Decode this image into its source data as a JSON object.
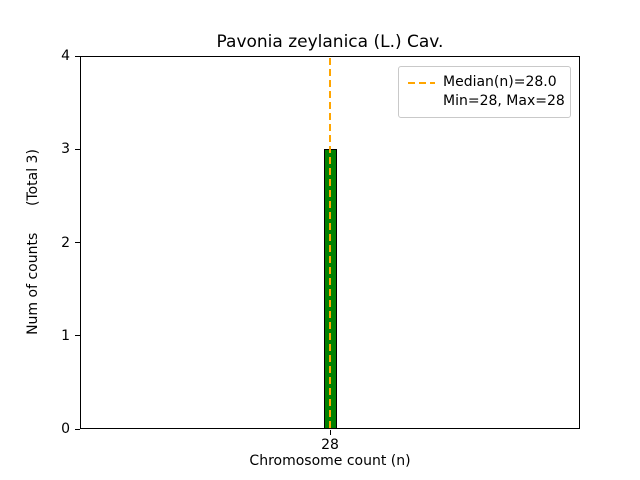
{
  "chart_data": {
    "type": "bar",
    "title": "Pavonia zeylanica (L.) Cav.",
    "xlabel": "Chromosome count (n)",
    "ylabel": "Num of counts      (Total 3)",
    "categories": [
      "28"
    ],
    "x": [
      28
    ],
    "values": [
      3
    ],
    "total_counts": 3,
    "ylim": [
      0,
      4
    ],
    "yticks": [
      "0",
      "1",
      "2",
      "3",
      "4"
    ],
    "xticks": [
      "28"
    ],
    "grid": false,
    "bar_color": "#008000",
    "bar_edge_color": "#000000",
    "median_line": {
      "value": 28.0,
      "color": "#FFA500",
      "style": "dashed"
    },
    "legend": {
      "position": "upper right",
      "entries": [
        {
          "label": "Median(n)=28.0",
          "line_color": "#FFA500",
          "line_style": "dashed"
        },
        {
          "label": "Min=28, Max=28"
        }
      ]
    }
  }
}
